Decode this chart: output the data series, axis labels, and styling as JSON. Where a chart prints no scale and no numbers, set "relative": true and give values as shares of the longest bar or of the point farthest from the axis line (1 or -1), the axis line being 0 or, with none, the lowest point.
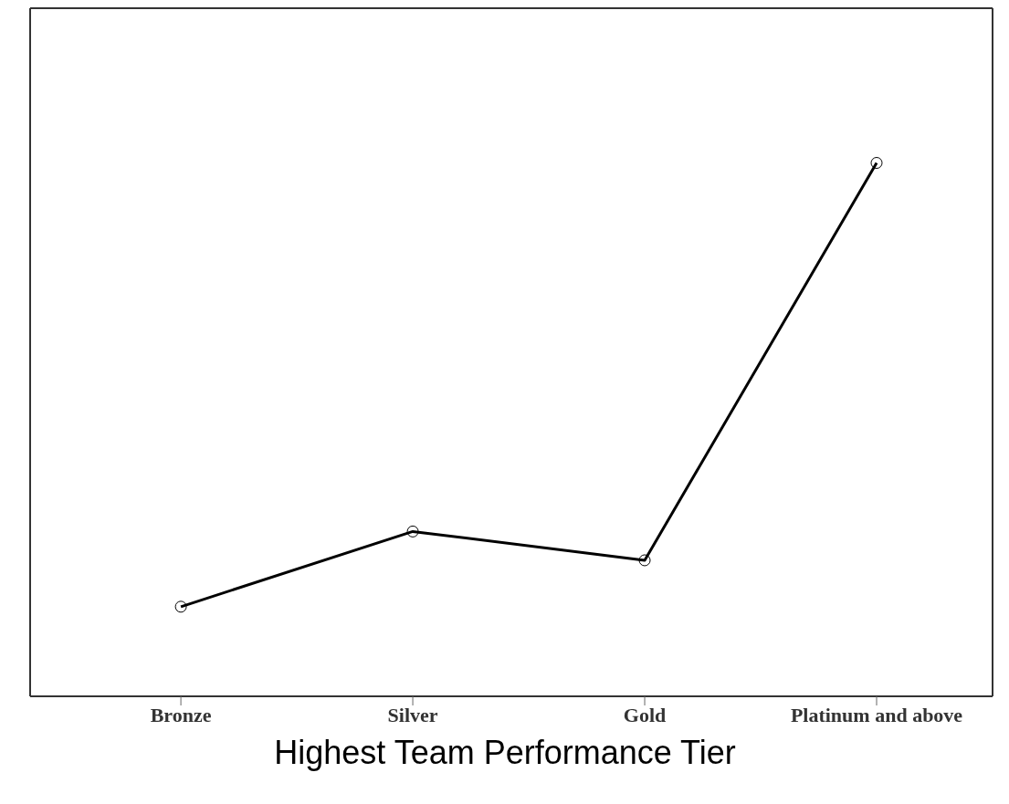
{
  "chart_data": {
    "type": "line",
    "xlabel": "Highest Team Performance Tier",
    "categories": [
      "Bronze",
      "Silver",
      "Gold",
      "Platinum and above"
    ],
    "relative": true,
    "series": [
      {
        "color": "#000000",
        "values": [
          0.168,
          0.309,
          0.255,
          1
        ]
      }
    ],
    "marker": "circle",
    "line_style": "solid",
    "grid": false,
    "legend": false
  }
}
